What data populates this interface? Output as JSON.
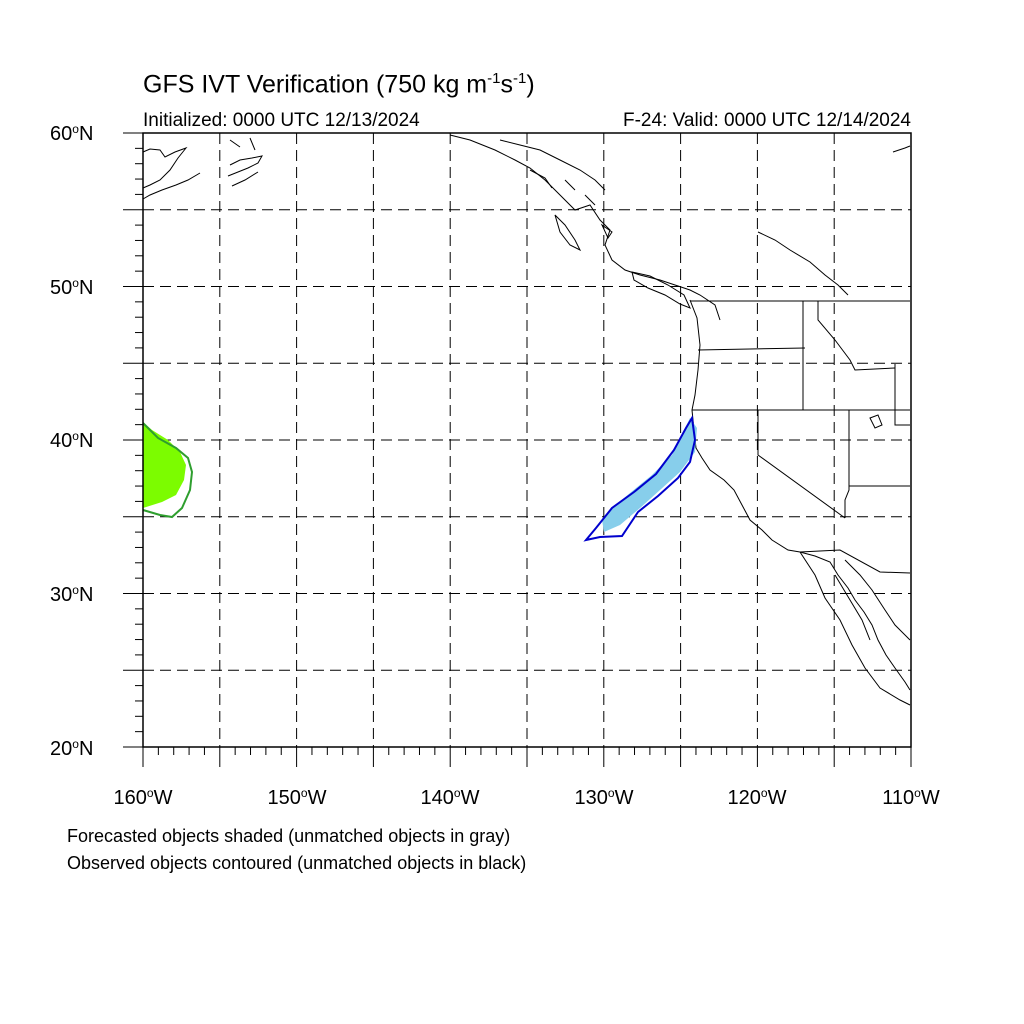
{
  "title": {
    "prefix": "GFS IVT Verification (750 kg m",
    "exp1": "-1",
    "mid": "s",
    "exp2": "-1",
    "suffix": ")"
  },
  "initialized": "Initialized: 0000 UTC 12/13/2024",
  "valid": "F-24: Valid: 0000 UTC 12/14/2024",
  "lat_labels": [
    "60",
    "50",
    "40",
    "30",
    "20"
  ],
  "lat_suffix": "N",
  "lon_labels": [
    "160",
    "150",
    "140",
    "130",
    "120",
    "110"
  ],
  "lon_suffix": "W",
  "degree_symbol": "o",
  "notes": {
    "forecast": "Forecasted objects shaded (unmatched objects in gray)",
    "observed": "Observed objects contoured (unmatched objects in black)"
  },
  "colors": {
    "coast": "#000000",
    "grid": "#000000",
    "forecast_west": "#7cfc00",
    "observed_west": "#2e9e2e",
    "forecast_east": "#87ceeb",
    "observed_east": "#0000cd"
  }
}
